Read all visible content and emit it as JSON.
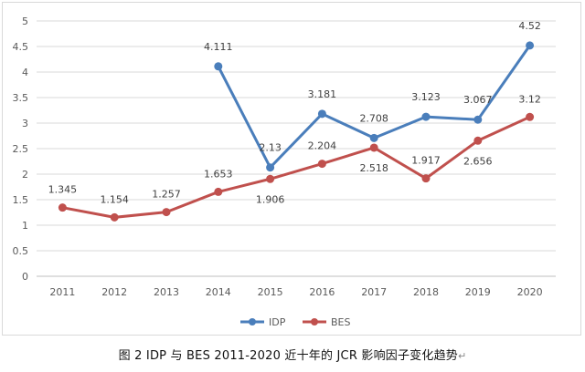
{
  "chart_data": {
    "type": "line",
    "title": "",
    "xlabel": "",
    "ylabel": "",
    "categories": [
      "2011",
      "2012",
      "2013",
      "2014",
      "2015",
      "2016",
      "2017",
      "2018",
      "2019",
      "2020"
    ],
    "ylim": [
      0,
      5
    ],
    "yticks": [
      "0",
      "0.5",
      "1",
      "1.5",
      "2",
      "2.5",
      "3",
      "3.5",
      "4",
      "4.5",
      "5"
    ],
    "grid": true,
    "legend_position": "bottom",
    "series": [
      {
        "name": "IDP",
        "color": "#4a7ebb",
        "values": [
          null,
          null,
          null,
          4.111,
          2.13,
          3.181,
          2.708,
          3.123,
          3.067,
          4.52
        ],
        "labels": [
          "",
          "",
          "",
          "4.111",
          "2.13",
          "3.181",
          "2.708",
          "3.123",
          "3.067",
          "4.52"
        ]
      },
      {
        "name": "BES",
        "color": "#c0504d",
        "values": [
          1.345,
          1.154,
          1.257,
          1.653,
          1.906,
          2.204,
          2.518,
          1.917,
          2.656,
          3.12
        ],
        "labels": [
          "1.345",
          "1.154",
          "1.257",
          "1.653",
          "1.906",
          "2.204",
          "2.518",
          "1.917",
          "2.656",
          "3.12"
        ]
      }
    ]
  },
  "caption": {
    "text": "图 2 IDP 与 BES   2011-2020 近十年的 JCR 影响因子变化趋势",
    "return_mark": "↵"
  }
}
